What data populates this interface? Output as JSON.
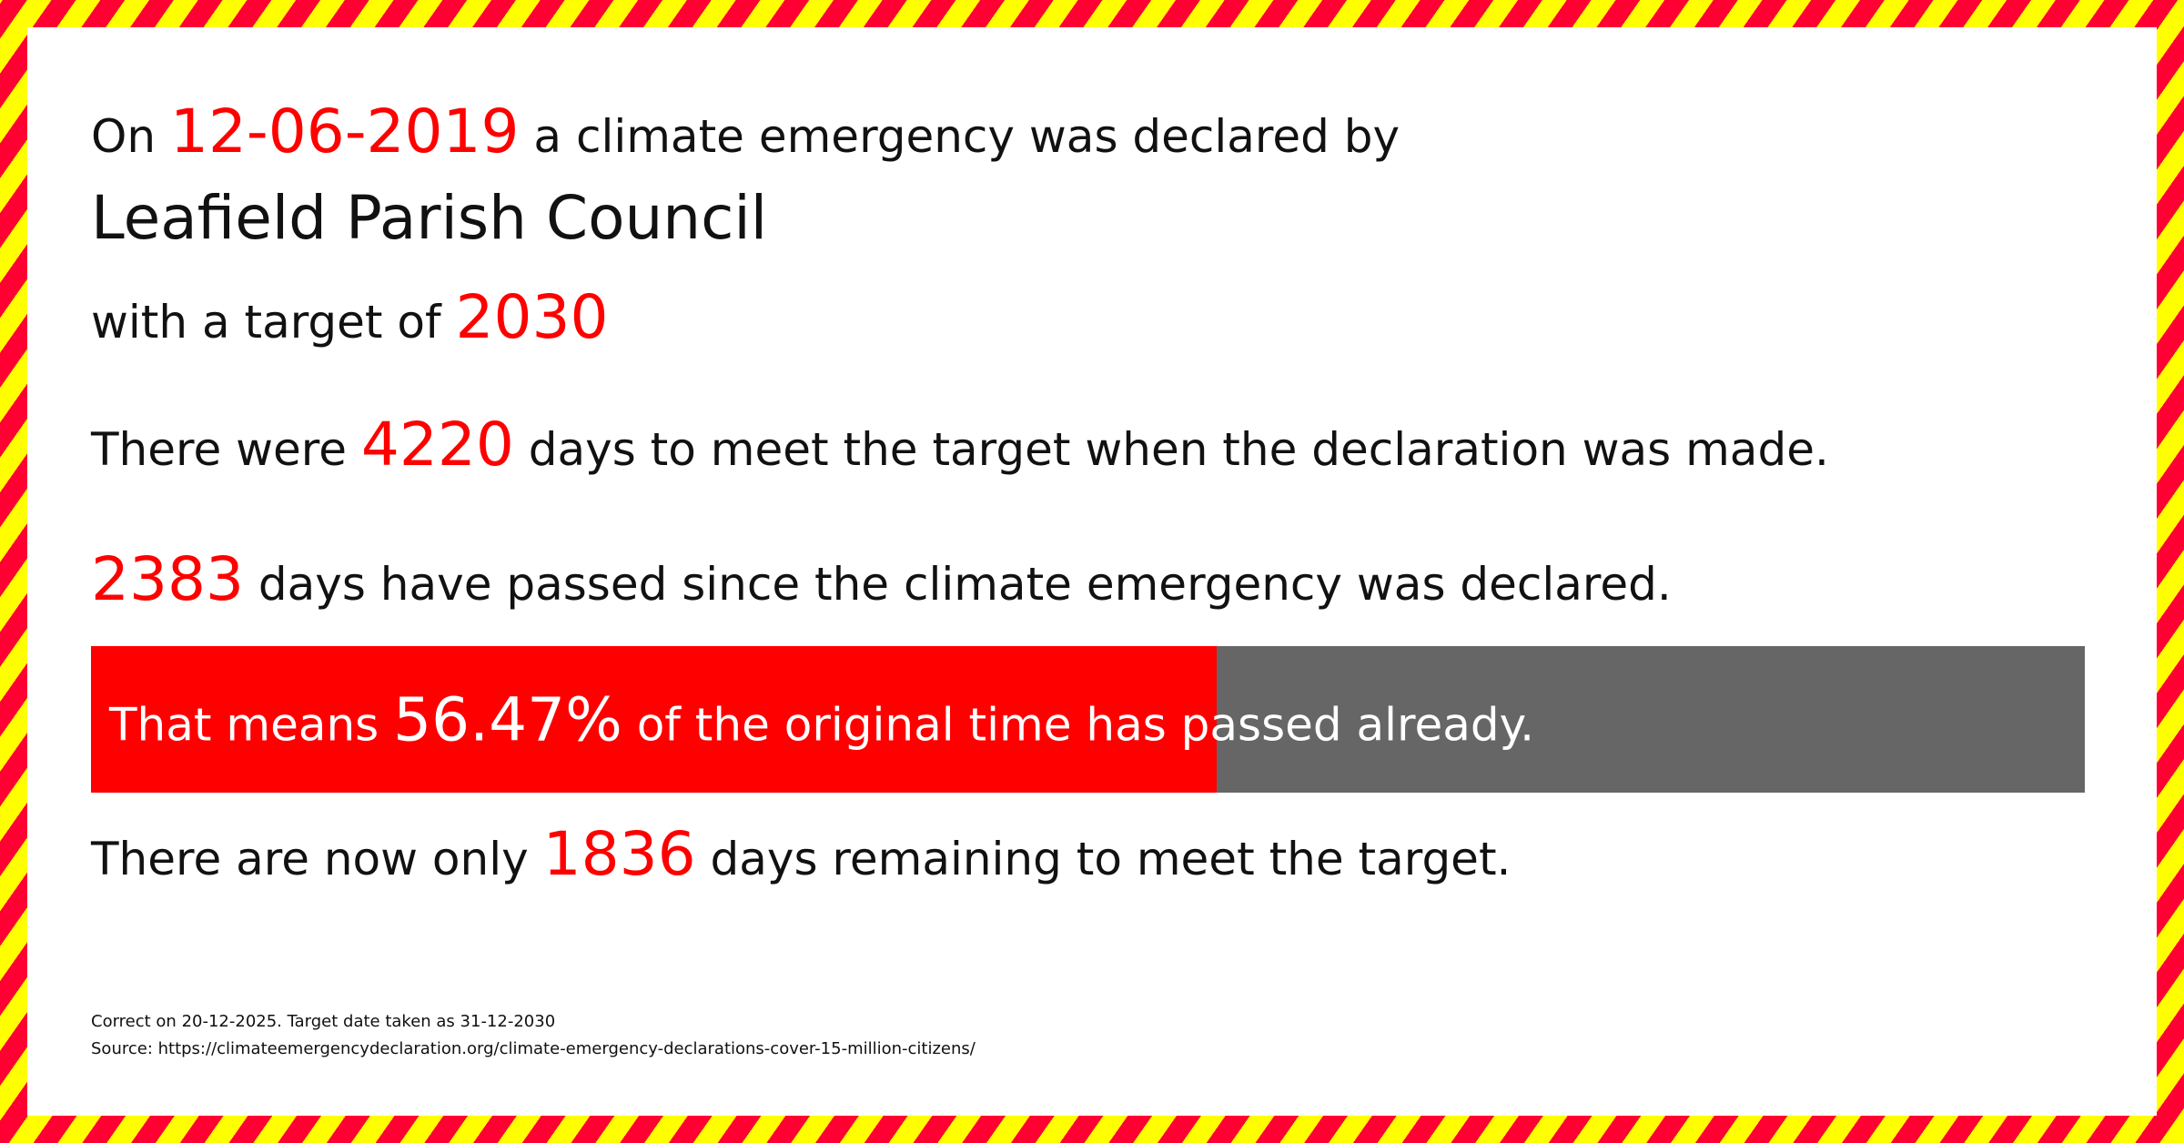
{
  "colors": {
    "accent": "#ff0000",
    "bar_remaining": "#666666",
    "stripe_red": "#ff0033",
    "stripe_yellow": "#ffff00"
  },
  "line1": {
    "prefix": "On",
    "date": "12-06-2019",
    "suffix": "a climate emergency was declared by"
  },
  "council": "Leafield Parish Council",
  "line3": {
    "prefix": "with a target of",
    "year": "2030"
  },
  "line4": {
    "prefix": "There were",
    "days": "4220",
    "suffix": "days to meet the target when the declaration was made."
  },
  "line5": {
    "days": "2383",
    "suffix": "days have passed since the climate emergency was declared."
  },
  "progress": {
    "prefix": "That means",
    "percent": "56.47%",
    "suffix": "of the original time has passed already.",
    "fraction": 0.5647
  },
  "line7": {
    "prefix": "There are now only",
    "days": "1836",
    "suffix": "days remaining to meet the target."
  },
  "footer": {
    "correct": "Correct on 20-12-2025. Target date taken as 31-12-2030",
    "source": "Source: https://climateemergencydeclaration.org/climate-emergency-declarations-cover-15-million-citizens/"
  }
}
